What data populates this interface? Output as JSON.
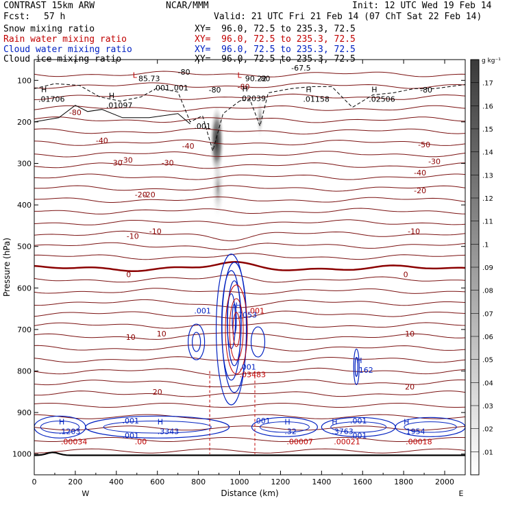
{
  "header": {
    "model": "CONTRAST 15km ARW",
    "source": "NCAR/MMM",
    "init": "Init: 12 UTC Wed 19 Feb 14",
    "fcst_label": "Fcst:",
    "fcst_value": "57 h",
    "valid": "Valid: 21 UTC Fri 21 Feb 14 (07 ChT Sat 22 Feb 14)"
  },
  "fields": [
    {
      "label": "Snow mixing ratio",
      "xy": "XY=  96.0, 72.5 to 235.3, 72.5",
      "color": "#000000"
    },
    {
      "label": "Rain water mixing ratio",
      "xy": "XY=  96.0, 72.5 to 235.3, 72.5",
      "color": "#c00000"
    },
    {
      "label": "Cloud water mixing ratio",
      "xy": "XY=  96.0, 72.5 to 235.3, 72.5",
      "color": "#0020c0"
    },
    {
      "label": "Cloud ice mixing ratio",
      "xy": "XY=  96.0, 72.5 to 235.3, 72.5",
      "color": "#000000"
    }
  ],
  "chart_data": {
    "type": "contour",
    "xlabel": "Distance (km)",
    "ylabel": "Pressure (hPa)",
    "xlim": [
      0,
      2100
    ],
    "ylim": [
      1050,
      50
    ],
    "x_ticks": [
      0,
      200,
      400,
      600,
      800,
      1000,
      1200,
      1400,
      1600,
      1800,
      2000
    ],
    "y_ticks": [
      100,
      200,
      300,
      400,
      500,
      600,
      700,
      800,
      900,
      1000
    ],
    "x_end_labels": {
      "left": "W",
      "right": "E"
    },
    "colorbar": {
      "unit": "g kg⁻¹",
      "levels": [
        ".01",
        ".02",
        ".03",
        ".04",
        ".05",
        ".06",
        ".07",
        ".08",
        ".09",
        ".1",
        ".11",
        ".12",
        ".13",
        ".14",
        ".15",
        ".16",
        ".17"
      ]
    },
    "temperature_labels": [
      {
        "x": 200,
        "p": 177,
        "t": "-80"
      },
      {
        "x": 1020,
        "p": 115,
        "t": "-80"
      },
      {
        "x": 400,
        "p": 298,
        "t": "-30"
      },
      {
        "x": 1900,
        "p": 255,
        "t": "-50"
      },
      {
        "x": 330,
        "p": 245,
        "t": "-40"
      },
      {
        "x": 750,
        "p": 258,
        "t": "-40"
      },
      {
        "x": 1880,
        "p": 322,
        "t": "-40"
      },
      {
        "x": 450,
        "p": 292,
        "t": "-30"
      },
      {
        "x": 650,
        "p": 298,
        "t": "-30"
      },
      {
        "x": 1950,
        "p": 295,
        "t": "-30"
      },
      {
        "x": 520,
        "p": 375,
        "t": "-20"
      },
      {
        "x": 560,
        "p": 375,
        "t": "-20"
      },
      {
        "x": 1880,
        "p": 365,
        "t": "-20"
      },
      {
        "x": 480,
        "p": 475,
        "t": "-10"
      },
      {
        "x": 590,
        "p": 463,
        "t": "-10"
      },
      {
        "x": 1850,
        "p": 463,
        "t": "-10"
      },
      {
        "x": 460,
        "p": 567,
        "t": "0"
      },
      {
        "x": 1810,
        "p": 567,
        "t": "0"
      },
      {
        "x": 470,
        "p": 718,
        "t": "10"
      },
      {
        "x": 620,
        "p": 710,
        "t": "10"
      },
      {
        "x": 1830,
        "p": 710,
        "t": "10"
      },
      {
        "x": 600,
        "p": 850,
        "t": "20"
      },
      {
        "x": 1830,
        "p": 838,
        "t": "20"
      }
    ],
    "tropopause_labels": [
      {
        "x": 620,
        "p": 118,
        "t": ".001"
      },
      {
        "x": 710,
        "p": 118,
        "t": ".001"
      },
      {
        "x": 820,
        "p": 210,
        "t": ".001"
      },
      {
        "x": 560,
        "p": 95,
        "t": "85.73"
      },
      {
        "x": 1080,
        "p": 95,
        "t": "90.22"
      },
      {
        "x": 1120,
        "p": 95,
        "t": "-80"
      },
      {
        "x": 1300,
        "p": 70,
        "t": "-67.5"
      },
      {
        "x": 730,
        "p": 80,
        "t": "-80"
      },
      {
        "x": 880,
        "p": 123,
        "t": "-80"
      },
      {
        "x": 1910,
        "p": 123,
        "t": "-80"
      }
    ],
    "upper_highs": [
      {
        "x": 20,
        "p": 135,
        "v": ".01706"
      },
      {
        "x": 350,
        "p": 150,
        "v": ".01097"
      },
      {
        "x": 1000,
        "p": 133,
        "v": ".02039"
      },
      {
        "x": 1310,
        "p": 135,
        "v": ".01158"
      },
      {
        "x": 1630,
        "p": 135,
        "v": ".02506"
      }
    ],
    "cloud_water_highs": [
      {
        "x": 980,
        "p": 655,
        "v": ".7053"
      },
      {
        "x": 1570,
        "p": 788,
        "v": ".162"
      },
      {
        "x": 120,
        "p": 935,
        "v": ".1203"
      },
      {
        "x": 600,
        "p": 935,
        "v": ".3343"
      },
      {
        "x": 1220,
        "p": 935,
        "v": ".32"
      },
      {
        "x": 1450,
        "p": 935,
        "v": ".3763"
      },
      {
        "x": 1800,
        "p": 935,
        "v": ".1954"
      }
    ],
    "cloud_water_labels": [
      {
        "x": 820,
        "p": 655,
        "v": ".001"
      },
      {
        "x": 1040,
        "p": 790,
        "v": ".001"
      },
      {
        "x": 470,
        "p": 920,
        "v": ".001"
      },
      {
        "x": 470,
        "p": 955,
        "v": ".001"
      },
      {
        "x": 1110,
        "p": 920,
        "v": ".001"
      },
      {
        "x": 1580,
        "p": 920,
        "v": ".001"
      },
      {
        "x": 1580,
        "p": 955,
        "v": ".001"
      }
    ],
    "rain_values": [
      {
        "x": 1040,
        "p": 655,
        "v": ".001"
      },
      {
        "x": 1000,
        "p": 808,
        "v": ".03483"
      },
      {
        "x": 130,
        "p": 970,
        "v": ".00034"
      },
      {
        "x": 490,
        "p": 970,
        "v": ".00"
      },
      {
        "x": 1230,
        "p": 970,
        "v": ".00007"
      },
      {
        "x": 1460,
        "p": 970,
        "v": ".00021"
      },
      {
        "x": 1810,
        "p": 970,
        "v": ".00018"
      }
    ],
    "lows": [
      {
        "x": 490,
        "p": 87,
        "color": "#c00000"
      },
      {
        "x": 1000,
        "p": 87,
        "color": "#c00000"
      }
    ]
  }
}
